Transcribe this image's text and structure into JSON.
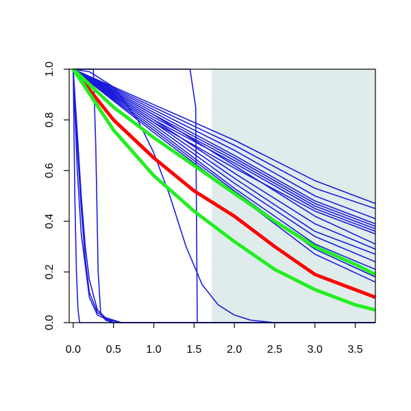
{
  "chart_data": {
    "type": "line",
    "title": "",
    "xlabel": "",
    "ylabel": "",
    "xlim": [
      -0.05,
      3.75
    ],
    "ylim": [
      0.0,
      1.0
    ],
    "x_ticks": [
      "0.0",
      "0.5",
      "1.0",
      "1.5",
      "2.0",
      "2.5",
      "3.0",
      "3.5"
    ],
    "x_tick_values": [
      0.0,
      0.5,
      1.0,
      1.5,
      2.0,
      2.5,
      3.0,
      3.5
    ],
    "y_ticks": [
      "0.0",
      "0.2",
      "0.4",
      "0.6",
      "0.8",
      "1.0"
    ],
    "y_tick_values": [
      0.0,
      0.2,
      0.4,
      0.6,
      0.8,
      1.0
    ],
    "grid": false,
    "legend": "none",
    "shaded_region": {
      "x": [
        1.72,
        3.75
      ],
      "color": "#e0ecec"
    },
    "colors": {
      "blue": "#1a1adb",
      "red": "#ff0000",
      "green": "#22ee22",
      "axis": "#000000"
    },
    "reference_curves": [
      {
        "color": "red",
        "values": [
          [
            0.0,
            1.0
          ],
          [
            0.5,
            0.8
          ],
          [
            1.0,
            0.65
          ],
          [
            1.5,
            0.52
          ],
          [
            2.0,
            0.42
          ],
          [
            2.5,
            0.3
          ],
          [
            3.0,
            0.19
          ],
          [
            3.5,
            0.13
          ],
          [
            3.75,
            0.1
          ]
        ]
      },
      {
        "color": "green",
        "values": [
          [
            0.0,
            1.0
          ],
          [
            0.5,
            0.85
          ],
          [
            1.0,
            0.73
          ],
          [
            1.5,
            0.62
          ],
          [
            2.0,
            0.51
          ],
          [
            2.5,
            0.4
          ],
          [
            3.0,
            0.3
          ],
          [
            3.5,
            0.23
          ],
          [
            3.75,
            0.19
          ]
        ]
      },
      {
        "color": "green",
        "values": [
          [
            0.0,
            1.0
          ],
          [
            0.5,
            0.76
          ],
          [
            1.0,
            0.58
          ],
          [
            1.5,
            0.44
          ],
          [
            2.0,
            0.32
          ],
          [
            2.5,
            0.21
          ],
          [
            3.0,
            0.13
          ],
          [
            3.5,
            0.07
          ],
          [
            3.75,
            0.05
          ]
        ]
      }
    ],
    "series": [
      {
        "values": [
          [
            0.0,
            1.0
          ],
          [
            1.0,
            0.86
          ],
          [
            2.0,
            0.72
          ],
          [
            3.0,
            0.56
          ],
          [
            3.75,
            0.47
          ]
        ]
      },
      {
        "values": [
          [
            0.0,
            1.0
          ],
          [
            1.0,
            0.85
          ],
          [
            2.0,
            0.7
          ],
          [
            3.0,
            0.53
          ],
          [
            3.75,
            0.45
          ]
        ]
      },
      {
        "values": [
          [
            0.0,
            1.0
          ],
          [
            1.0,
            0.84
          ],
          [
            2.0,
            0.68
          ],
          [
            3.0,
            0.5
          ],
          [
            3.75,
            0.41
          ]
        ]
      },
      {
        "values": [
          [
            0.0,
            1.0
          ],
          [
            1.0,
            0.83
          ],
          [
            2.0,
            0.66
          ],
          [
            3.0,
            0.48
          ],
          [
            3.75,
            0.39
          ]
        ]
      },
      {
        "values": [
          [
            0.0,
            1.0
          ],
          [
            1.0,
            0.82
          ],
          [
            2.0,
            0.65
          ],
          [
            3.0,
            0.47
          ],
          [
            3.75,
            0.38
          ]
        ]
      },
      {
        "values": [
          [
            0.0,
            1.0
          ],
          [
            1.0,
            0.81
          ],
          [
            2.0,
            0.64
          ],
          [
            3.0,
            0.46
          ],
          [
            3.75,
            0.37
          ]
        ]
      },
      {
        "values": [
          [
            0.0,
            1.0
          ],
          [
            1.0,
            0.8
          ],
          [
            2.0,
            0.63
          ],
          [
            3.0,
            0.45
          ],
          [
            3.75,
            0.36
          ]
        ]
      },
      {
        "values": [
          [
            0.0,
            1.0
          ],
          [
            1.0,
            0.79
          ],
          [
            2.0,
            0.61
          ],
          [
            3.0,
            0.44
          ],
          [
            3.75,
            0.35
          ]
        ]
      },
      {
        "values": [
          [
            0.0,
            1.0
          ],
          [
            1.0,
            0.82
          ],
          [
            2.0,
            0.62
          ],
          [
            3.0,
            0.42
          ],
          [
            3.75,
            0.31
          ]
        ]
      },
      {
        "values": [
          [
            0.0,
            1.0
          ],
          [
            1.0,
            0.8
          ],
          [
            2.0,
            0.59
          ],
          [
            3.0,
            0.39
          ],
          [
            3.75,
            0.29
          ]
        ]
      },
      {
        "values": [
          [
            0.0,
            1.0
          ],
          [
            1.0,
            0.79
          ],
          [
            2.0,
            0.57
          ],
          [
            3.0,
            0.36
          ],
          [
            3.75,
            0.27
          ]
        ]
      },
      {
        "values": [
          [
            0.0,
            1.0
          ],
          [
            1.0,
            0.78
          ],
          [
            2.0,
            0.55
          ],
          [
            3.0,
            0.34
          ],
          [
            3.75,
            0.24
          ]
        ]
      },
      {
        "values": [
          [
            0.0,
            1.0
          ],
          [
            1.0,
            0.77
          ],
          [
            2.0,
            0.53
          ],
          [
            3.0,
            0.31
          ],
          [
            3.75,
            0.21
          ]
        ]
      },
      {
        "values": [
          [
            0.0,
            1.0
          ],
          [
            1.0,
            0.76
          ],
          [
            2.0,
            0.52
          ],
          [
            3.0,
            0.29
          ],
          [
            3.75,
            0.18
          ]
        ]
      },
      {
        "values": [
          [
            0.0,
            1.0
          ],
          [
            1.0,
            0.75
          ],
          [
            2.0,
            0.51
          ],
          [
            3.0,
            0.27
          ],
          [
            3.75,
            0.16
          ]
        ]
      },
      {
        "values": [
          [
            0.0,
            1.0
          ],
          [
            0.2,
            0.99
          ],
          [
            0.5,
            0.93
          ],
          [
            0.8,
            0.8
          ],
          [
            1.0,
            0.67
          ],
          [
            1.2,
            0.5
          ],
          [
            1.4,
            0.3
          ],
          [
            1.6,
            0.15
          ],
          [
            1.8,
            0.07
          ],
          [
            2.0,
            0.03
          ],
          [
            2.2,
            0.01
          ],
          [
            2.5,
            0.0
          ],
          [
            3.75,
            0.0
          ]
        ]
      },
      {
        "values": [
          [
            0.0,
            1.0
          ],
          [
            0.5,
            1.0
          ],
          [
            1.0,
            1.0
          ],
          [
            1.45,
            1.0
          ],
          [
            1.52,
            0.85
          ],
          [
            1.53,
            0.4
          ],
          [
            1.54,
            0.0
          ],
          [
            3.75,
            0.0
          ]
        ]
      },
      {
        "values": [
          [
            0.0,
            1.0
          ],
          [
            0.25,
            1.0
          ],
          [
            0.28,
            0.7
          ],
          [
            0.31,
            0.2
          ],
          [
            0.34,
            0.04
          ],
          [
            0.4,
            0.01
          ],
          [
            0.5,
            0.0
          ],
          [
            3.75,
            0.0
          ]
        ]
      },
      {
        "values": [
          [
            0.0,
            1.0
          ],
          [
            0.05,
            0.75
          ],
          [
            0.1,
            0.5
          ],
          [
            0.15,
            0.3
          ],
          [
            0.2,
            0.17
          ],
          [
            0.3,
            0.05
          ],
          [
            0.4,
            0.02
          ],
          [
            0.6,
            0.0
          ],
          [
            3.75,
            0.0
          ]
        ]
      },
      {
        "values": [
          [
            0.0,
            1.0
          ],
          [
            0.05,
            0.7
          ],
          [
            0.1,
            0.45
          ],
          [
            0.15,
            0.25
          ],
          [
            0.2,
            0.12
          ],
          [
            0.3,
            0.04
          ],
          [
            0.45,
            0.01
          ],
          [
            0.6,
            0.0
          ],
          [
            3.75,
            0.0
          ]
        ]
      },
      {
        "values": [
          [
            0.0,
            1.0
          ],
          [
            0.05,
            0.6
          ],
          [
            0.1,
            0.35
          ],
          [
            0.2,
            0.1
          ],
          [
            0.3,
            0.03
          ],
          [
            0.5,
            0.0
          ],
          [
            3.75,
            0.0
          ]
        ]
      },
      {
        "values": [
          [
            0.0,
            1.0
          ],
          [
            0.02,
            0.5
          ],
          [
            0.04,
            0.2
          ],
          [
            0.06,
            0.05
          ],
          [
            0.08,
            0.0
          ],
          [
            3.75,
            0.0
          ]
        ]
      }
    ]
  }
}
